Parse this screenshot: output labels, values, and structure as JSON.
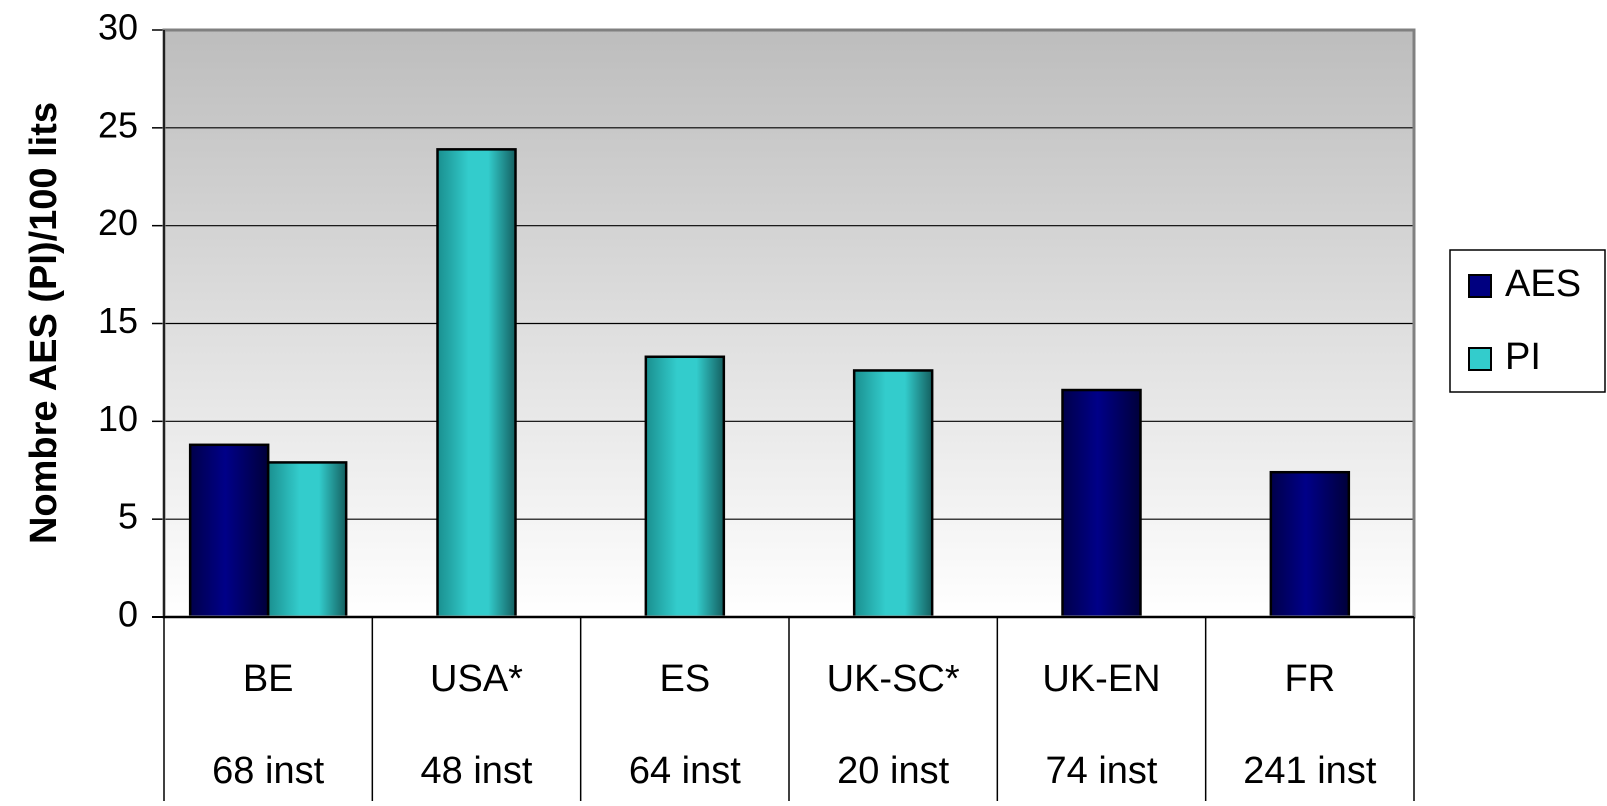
{
  "chart_data": {
    "type": "bar",
    "categories": [
      "BE",
      "USA*",
      "ES",
      "UK-SC*",
      "UK-EN",
      "FR"
    ],
    "category_sublabels": [
      "68 inst",
      "48 inst",
      "64 inst",
      "20 inst",
      "74 inst",
      "241 inst"
    ],
    "series": [
      {
        "name": "AES",
        "values": [
          8.8,
          null,
          null,
          null,
          11.6,
          7.4
        ]
      },
      {
        "name": "PI",
        "values": [
          7.9,
          23.9,
          13.3,
          12.6,
          null,
          null
        ]
      }
    ],
    "title": "",
    "xlabel": "",
    "ylabel": "Nombre AES (PI)/100 lits",
    "ylim": [
      0,
      30
    ],
    "yticks": [
      0,
      5,
      10,
      15,
      20,
      25,
      30
    ],
    "grid": true,
    "legend_position": "right",
    "colors": {
      "AES": "#000080",
      "PI": "#33CCCC"
    }
  }
}
